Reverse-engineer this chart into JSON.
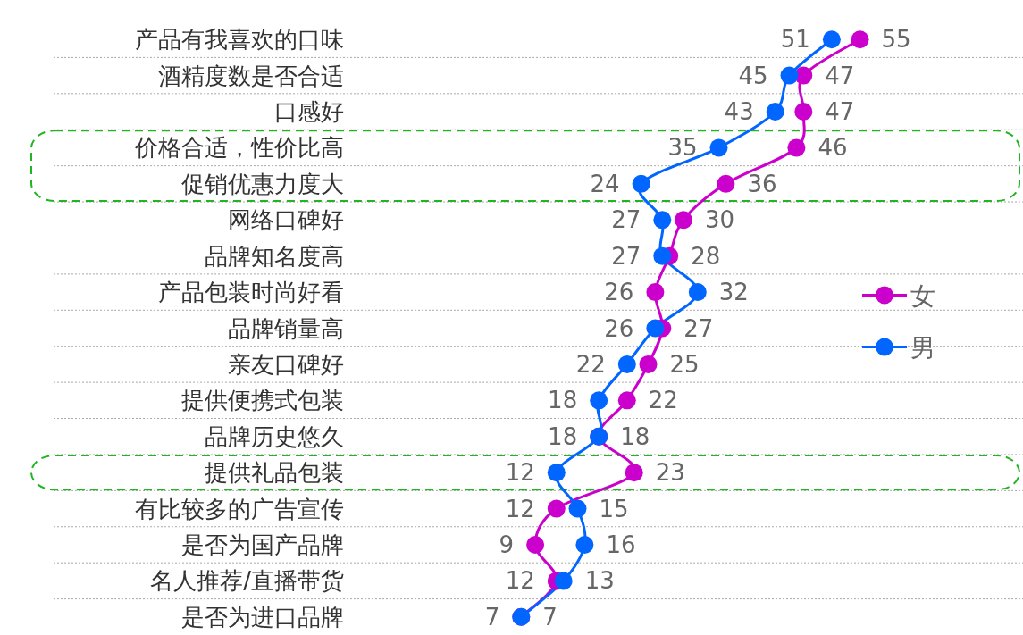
{
  "chart_data": {
    "type": "line",
    "orientation": "horizontal",
    "categories": [
      "产品有我喜欢的口味",
      "酒精度数是否合适",
      "口感好",
      "价格合适，性价比高",
      "促销优惠力度大",
      "网络口碑好",
      "品牌知名度高",
      "产品包装时尚好看",
      "品牌销量高",
      "亲友口碑好",
      "提供便携式包装",
      "品牌历史悠久",
      "提供礼品包装",
      "有比较多的广告宣传",
      "是否为国产品牌",
      "名人推荐/直播带货",
      "是否为进口品牌"
    ],
    "series": [
      {
        "name": "女",
        "color": "#cc00cc",
        "values": [
          55,
          47,
          47,
          46,
          36,
          30,
          28,
          26,
          27,
          25,
          22,
          18,
          23,
          12,
          9,
          12,
          7
        ]
      },
      {
        "name": "男",
        "color": "#0066ff",
        "values": [
          51,
          45,
          43,
          35,
          24,
          27,
          27,
          32,
          26,
          22,
          18,
          18,
          12,
          15,
          16,
          13,
          7
        ]
      }
    ],
    "data_labels": true,
    "marker": "circle",
    "line_style": "solid",
    "legend": "right",
    "grid": "y"
  }
}
